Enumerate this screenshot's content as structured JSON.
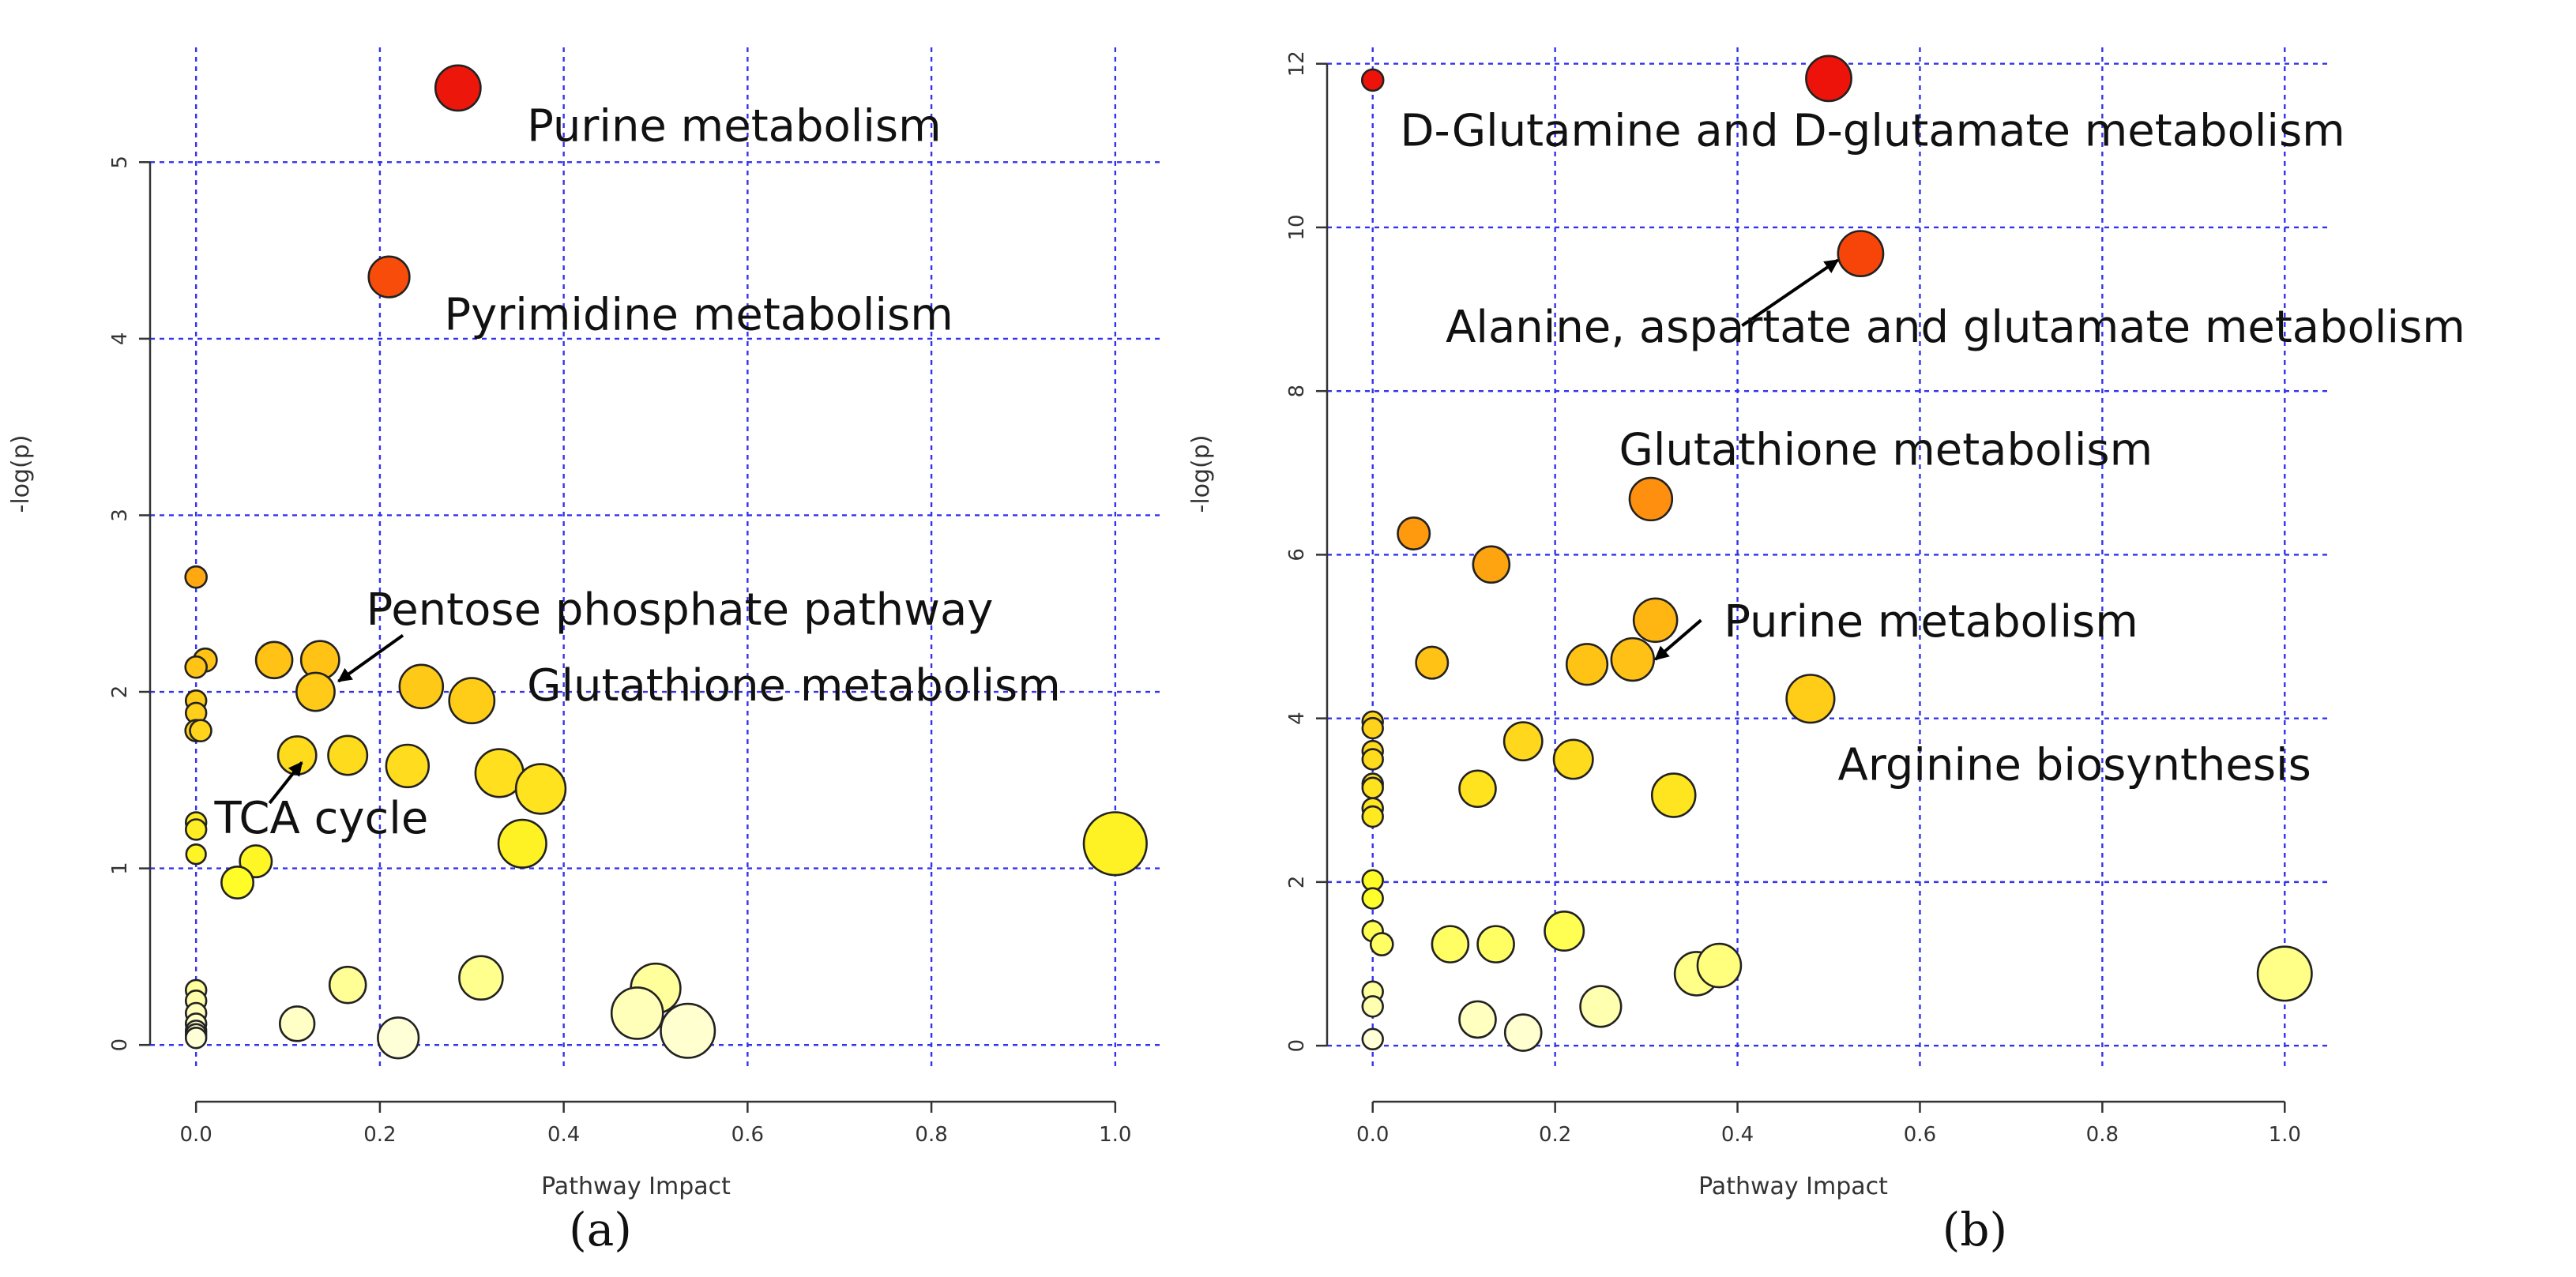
{
  "chart_data": [
    {
      "type": "scatter",
      "panel_label": "(a)",
      "xlabel": "Pathway Impact",
      "ylabel": "-log(p)",
      "xlim": [
        -0.05,
        1.05
      ],
      "ylim": [
        -0.12,
        5.65
      ],
      "x_ticks": [
        "0.0",
        "0.2",
        "0.4",
        "0.6",
        "0.8",
        "1.0"
      ],
      "y_ticks": [
        "0",
        "1",
        "2",
        "3",
        "4",
        "5"
      ],
      "grid": true,
      "color_scale": "white (low -log(p)) to yellow to orange to red (high -log(p))",
      "points": [
        {
          "x": 0.285,
          "y": 5.42,
          "size": 0.35
        },
        {
          "x": 0.21,
          "y": 4.35,
          "size": 0.3
        },
        {
          "x": 0.0,
          "y": 2.65,
          "size": 0.08
        },
        {
          "x": 0.01,
          "y": 2.18,
          "size": 0.1
        },
        {
          "x": 0.0,
          "y": 2.14,
          "size": 0.08
        },
        {
          "x": 0.085,
          "y": 2.18,
          "size": 0.25
        },
        {
          "x": 0.135,
          "y": 2.18,
          "size": 0.27
        },
        {
          "x": 0.13,
          "y": 2.0,
          "size": 0.27
        },
        {
          "x": 0.245,
          "y": 2.03,
          "size": 0.33
        },
        {
          "x": 0.3,
          "y": 1.95,
          "size": 0.35
        },
        {
          "x": 0.0,
          "y": 1.95,
          "size": 0.07
        },
        {
          "x": 0.0,
          "y": 1.88,
          "size": 0.07
        },
        {
          "x": 0.0,
          "y": 1.78,
          "size": 0.08
        },
        {
          "x": 0.005,
          "y": 1.78,
          "size": 0.08
        },
        {
          "x": 0.11,
          "y": 1.64,
          "size": 0.27
        },
        {
          "x": 0.165,
          "y": 1.64,
          "size": 0.28
        },
        {
          "x": 0.23,
          "y": 1.58,
          "size": 0.32
        },
        {
          "x": 0.33,
          "y": 1.54,
          "size": 0.38
        },
        {
          "x": 0.375,
          "y": 1.45,
          "size": 0.4
        },
        {
          "x": 0.0,
          "y": 1.26,
          "size": 0.07
        },
        {
          "x": 0.0,
          "y": 1.22,
          "size": 0.07
        },
        {
          "x": 0.355,
          "y": 1.14,
          "size": 0.38
        },
        {
          "x": 0.0,
          "y": 1.08,
          "size": 0.06
        },
        {
          "x": 0.065,
          "y": 1.04,
          "size": 0.2
        },
        {
          "x": 0.045,
          "y": 0.92,
          "size": 0.2
        },
        {
          "x": 1.0,
          "y": 1.14,
          "size": 0.55
        },
        {
          "x": 0.0,
          "y": 0.31,
          "size": 0.07
        },
        {
          "x": 0.0,
          "y": 0.25,
          "size": 0.07
        },
        {
          "x": 0.0,
          "y": 0.18,
          "size": 0.07
        },
        {
          "x": 0.0,
          "y": 0.12,
          "size": 0.07
        },
        {
          "x": 0.0,
          "y": 0.08,
          "size": 0.07
        },
        {
          "x": 0.0,
          "y": 0.06,
          "size": 0.07
        },
        {
          "x": 0.0,
          "y": 0.04,
          "size": 0.07
        },
        {
          "x": 0.11,
          "y": 0.12,
          "size": 0.23
        },
        {
          "x": 0.165,
          "y": 0.34,
          "size": 0.25
        },
        {
          "x": 0.31,
          "y": 0.38,
          "size": 0.33
        },
        {
          "x": 0.5,
          "y": 0.32,
          "size": 0.4
        },
        {
          "x": 0.48,
          "y": 0.18,
          "size": 0.42
        },
        {
          "x": 0.535,
          "y": 0.08,
          "size": 0.45
        },
        {
          "x": 0.22,
          "y": 0.04,
          "size": 0.3
        }
      ],
      "annotations": [
        {
          "text": "Purine metabolism",
          "x": 0.36,
          "y": 5.12,
          "anchor": "start"
        },
        {
          "text": "Pyrimidine metabolism",
          "x": 0.27,
          "y": 4.05,
          "anchor": "start"
        },
        {
          "text": "Pentose phosphate pathway",
          "x": 0.185,
          "y": 2.38,
          "anchor": "start"
        },
        {
          "text": "Glutathione metabolism",
          "x": 0.36,
          "y": 1.95,
          "anchor": "start"
        },
        {
          "text": "TCA cycle",
          "x": 0.02,
          "y": 1.2,
          "anchor": "start"
        }
      ],
      "arrows": [
        {
          "from": [
            0.225,
            2.32
          ],
          "to": [
            0.155,
            2.06
          ]
        },
        {
          "from": [
            0.08,
            1.37
          ],
          "to": [
            0.115,
            1.6
          ]
        }
      ]
    },
    {
      "type": "scatter",
      "panel_label": "(b)",
      "xlabel": "Pathway Impact",
      "ylabel": "-log(p)",
      "xlim": [
        -0.05,
        1.05
      ],
      "ylim": [
        -0.25,
        12.2
      ],
      "x_ticks": [
        "0.0",
        "0.2",
        "0.4",
        "0.6",
        "0.8",
        "1.0"
      ],
      "y_ticks": [
        "0",
        "2",
        "4",
        "6",
        "8",
        "10",
        "12"
      ],
      "grid": true,
      "color_scale": "white (low -log(p)) to yellow to orange to red (high -log(p))",
      "points": [
        {
          "x": 0.0,
          "y": 11.8,
          "size": 0.08
        },
        {
          "x": 0.5,
          "y": 11.82,
          "size": 0.35
        },
        {
          "x": 0.535,
          "y": 9.68,
          "size": 0.35
        },
        {
          "x": 0.305,
          "y": 6.68,
          "size": 0.32
        },
        {
          "x": 0.045,
          "y": 6.26,
          "size": 0.2
        },
        {
          "x": 0.13,
          "y": 5.88,
          "size": 0.25
        },
        {
          "x": 0.31,
          "y": 5.2,
          "size": 0.33
        },
        {
          "x": 0.065,
          "y": 4.68,
          "size": 0.2
        },
        {
          "x": 0.235,
          "y": 4.66,
          "size": 0.3
        },
        {
          "x": 0.285,
          "y": 4.72,
          "size": 0.32
        },
        {
          "x": 0.48,
          "y": 4.24,
          "size": 0.38
        },
        {
          "x": 0.0,
          "y": 3.96,
          "size": 0.07
        },
        {
          "x": 0.0,
          "y": 3.88,
          "size": 0.07
        },
        {
          "x": 0.0,
          "y": 3.6,
          "size": 0.07
        },
        {
          "x": 0.0,
          "y": 3.5,
          "size": 0.07
        },
        {
          "x": 0.0,
          "y": 3.2,
          "size": 0.07
        },
        {
          "x": 0.0,
          "y": 3.15,
          "size": 0.07
        },
        {
          "x": 0.0,
          "y": 2.9,
          "size": 0.07
        },
        {
          "x": 0.0,
          "y": 2.8,
          "size": 0.07
        },
        {
          "x": 0.165,
          "y": 3.72,
          "size": 0.27
        },
        {
          "x": 0.22,
          "y": 3.5,
          "size": 0.28
        },
        {
          "x": 0.115,
          "y": 3.14,
          "size": 0.25
        },
        {
          "x": 0.33,
          "y": 3.06,
          "size": 0.33
        },
        {
          "x": 0.0,
          "y": 2.02,
          "size": 0.07
        },
        {
          "x": 0.0,
          "y": 1.8,
          "size": 0.07
        },
        {
          "x": 0.0,
          "y": 1.4,
          "size": 0.07
        },
        {
          "x": 0.01,
          "y": 1.24,
          "size": 0.09
        },
        {
          "x": 0.085,
          "y": 1.24,
          "size": 0.25
        },
        {
          "x": 0.135,
          "y": 1.24,
          "size": 0.25
        },
        {
          "x": 0.21,
          "y": 1.4,
          "size": 0.28
        },
        {
          "x": 0.0,
          "y": 0.66,
          "size": 0.07
        },
        {
          "x": 0.0,
          "y": 0.48,
          "size": 0.07
        },
        {
          "x": 0.0,
          "y": 0.08,
          "size": 0.07
        },
        {
          "x": 0.115,
          "y": 0.32,
          "size": 0.25
        },
        {
          "x": 0.165,
          "y": 0.16,
          "size": 0.25
        },
        {
          "x": 0.25,
          "y": 0.48,
          "size": 0.3
        },
        {
          "x": 0.355,
          "y": 0.88,
          "size": 0.33
        },
        {
          "x": 0.38,
          "y": 0.98,
          "size": 0.33
        },
        {
          "x": 1.0,
          "y": 0.88,
          "size": 0.45
        }
      ],
      "annotations": [
        {
          "text": "D-Glutamine and D-glutamate metabolism",
          "x": 0.03,
          "y": 11.0,
          "anchor": "start"
        },
        {
          "text": "Alanine, aspartate and glutamate metabolism",
          "x": 0.08,
          "y": 8.6,
          "anchor": "start"
        },
        {
          "text": "Glutathione metabolism",
          "x": 0.27,
          "y": 7.1,
          "anchor": "start"
        },
        {
          "text": "Purine metabolism",
          "x": 0.385,
          "y": 5.0,
          "anchor": "start"
        },
        {
          "text": "Arginine biosynthesis",
          "x": 0.51,
          "y": 3.25,
          "anchor": "start"
        }
      ],
      "arrows": [
        {
          "from": [
            0.405,
            8.8
          ],
          "to": [
            0.51,
            9.6
          ]
        },
        {
          "from": [
            0.36,
            5.2
          ],
          "to": [
            0.31,
            4.72
          ]
        }
      ]
    }
  ]
}
